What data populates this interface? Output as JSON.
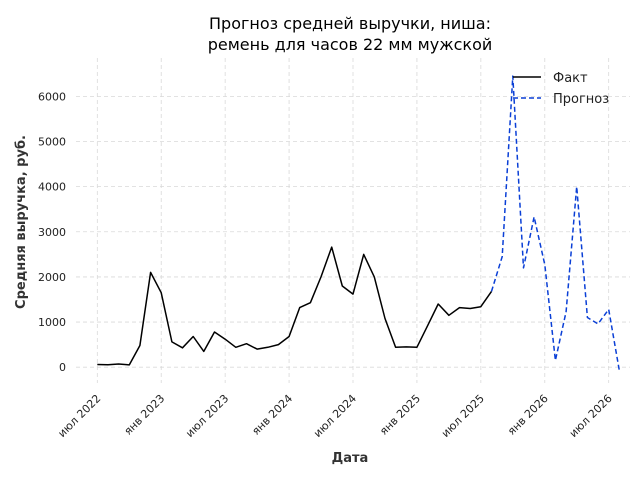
{
  "chart_data": {
    "type": "line",
    "title": "Прогноз средней выручки, ниша: ремень для часов 22 мм мужской",
    "title_lines": [
      "Прогноз средней выручки, ниша:",
      "ремень для часов 22 мм мужской"
    ],
    "xlabel": "Дата",
    "ylabel": "Средняя выручка, руб.",
    "x_ticks": [
      {
        "date": "2022-07",
        "label": "июл 2022"
      },
      {
        "date": "2023-01",
        "label": "янв 2023"
      },
      {
        "date": "2023-07",
        "label": "июл 2023"
      },
      {
        "date": "2024-01",
        "label": "янв 2024"
      },
      {
        "date": "2024-07",
        "label": "июл 2024"
      },
      {
        "date": "2025-01",
        "label": "янв 2025"
      },
      {
        "date": "2025-07",
        "label": "июл 2025"
      },
      {
        "date": "2026-01",
        "label": "янв 2026"
      },
      {
        "date": "2026-07",
        "label": "июл 2026"
      }
    ],
    "y_ticks": [
      0,
      1000,
      2000,
      3000,
      4000,
      5000,
      6000
    ],
    "xlim": [
      "2022-05",
      "2026-09"
    ],
    "ylim": [
      -350,
      6850
    ],
    "grid": true,
    "legend_position": "top-right",
    "series": [
      {
        "name": "Факт",
        "color": "#000000",
        "style": "solid",
        "x": [
          "2022-07",
          "2022-08",
          "2022-09",
          "2022-10",
          "2022-11",
          "2022-12",
          "2023-01",
          "2023-02",
          "2023-03",
          "2023-04",
          "2023-05",
          "2023-06",
          "2023-07",
          "2023-08",
          "2023-09",
          "2023-10",
          "2023-11",
          "2023-12",
          "2024-01",
          "2024-02",
          "2024-03",
          "2024-04",
          "2024-05",
          "2024-06",
          "2024-07",
          "2024-08",
          "2024-09",
          "2024-10",
          "2024-11",
          "2024-12",
          "2025-01",
          "2025-02",
          "2025-03",
          "2025-04",
          "2025-05",
          "2025-06",
          "2025-07",
          "2025-08"
        ],
        "values": [
          60,
          55,
          70,
          50,
          480,
          2100,
          1650,
          560,
          430,
          680,
          350,
          780,
          620,
          440,
          520,
          400,
          440,
          500,
          680,
          1320,
          1430,
          2000,
          2660,
          1800,
          1620,
          2500,
          2000,
          1080,
          440,
          450,
          440,
          920,
          1400,
          1150,
          1320,
          1300,
          1340,
          1680
        ]
      },
      {
        "name": "Прогноз",
        "color": "#0a3fd6",
        "style": "dashed",
        "x": [
          "2025-08",
          "2025-09",
          "2025-10",
          "2025-11",
          "2025-12",
          "2026-01",
          "2026-02",
          "2026-03",
          "2026-04",
          "2026-05",
          "2026-06",
          "2026-07",
          "2026-08"
        ],
        "values": [
          1680,
          2450,
          6450,
          2200,
          3330,
          2270,
          150,
          1230,
          4000,
          1100,
          960,
          1280,
          -70
        ]
      }
    ]
  }
}
